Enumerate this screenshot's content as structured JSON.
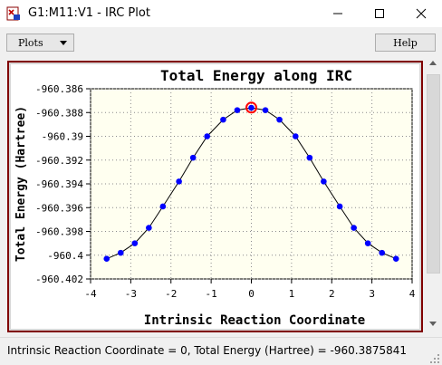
{
  "window": {
    "title": "G1:M11:V1 - IRC Plot",
    "colors": {
      "frame": "#800000",
      "plot_bg": "#fffff0",
      "marker": "#0000ff",
      "highlight": "#ff0000"
    }
  },
  "toolbar": {
    "plots_label": "Plots",
    "help_label": "Help"
  },
  "status": {
    "text": "Intrinsic Reaction Coordinate = 0, Total Energy (Hartree) = -960.3875841"
  },
  "chart_data": {
    "type": "line",
    "title": "Total Energy along IRC",
    "xlabel": "Intrinsic Reaction Coordinate",
    "ylabel": "Total Energy (Hartree)",
    "xlim": [
      -4,
      4
    ],
    "ylim": [
      -960.402,
      -960.386
    ],
    "xticks": [
      -4,
      -3,
      -2,
      -1,
      0,
      1,
      2,
      3,
      4
    ],
    "yticks": [
      -960.386,
      -960.388,
      -960.39,
      -960.392,
      -960.394,
      -960.396,
      -960.398,
      -960.4,
      -960.402
    ],
    "xtick_labels": [
      "-4",
      "-3",
      "-2",
      "-1",
      "0",
      "1",
      "2",
      "3",
      "4"
    ],
    "ytick_labels": [
      "-960.386",
      "-960.388",
      "-960.39",
      "-960.392",
      "-960.394",
      "-960.396",
      "-960.398",
      "-960.4",
      "-960.402"
    ],
    "grid": true,
    "series": [
      {
        "x": [
          -3.6,
          -3.25,
          -2.9,
          -2.55,
          -2.2,
          -1.8,
          -1.45,
          -1.1,
          -0.7,
          -0.35,
          0,
          0.35,
          0.7,
          1.1,
          1.45,
          1.8,
          2.2,
          2.55,
          2.9,
          3.25,
          3.6
        ],
        "y": [
          -960.4003,
          -960.3998,
          -960.399,
          -960.3977,
          -960.3959,
          -960.3938,
          -960.3918,
          -960.39,
          -960.3886,
          -960.3878,
          -960.3876,
          -960.3878,
          -960.3886,
          -960.39,
          -960.3918,
          -960.3938,
          -960.3959,
          -960.3977,
          -960.399,
          -960.3998,
          -960.4003
        ]
      }
    ],
    "highlight": {
      "x": 0,
      "y": -960.3875841
    }
  }
}
